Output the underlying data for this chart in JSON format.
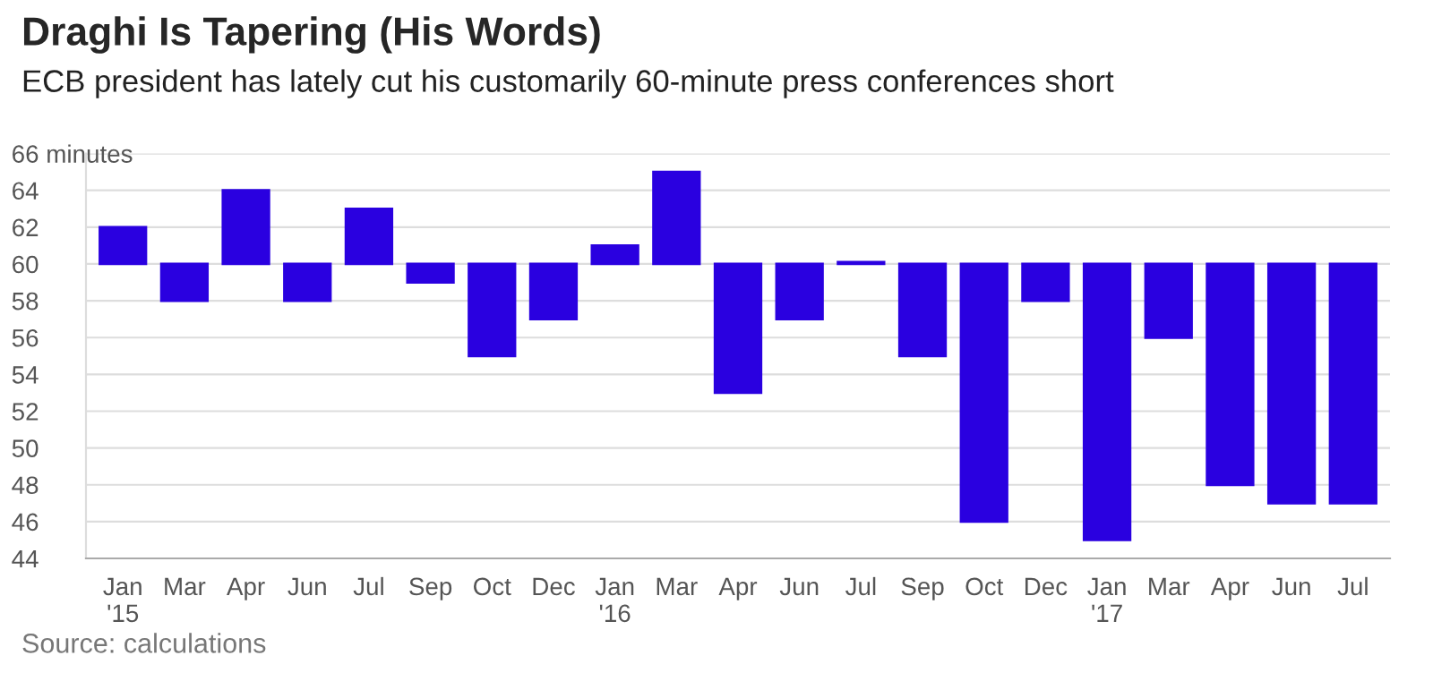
{
  "chart_data": {
    "type": "bar",
    "title": "Draghi Is Tapering (His Words)",
    "subtitle": "ECB president has lately cut his customarily 60-minute press conferences short",
    "categories": [
      "Jan\n'15",
      "Mar",
      "Apr",
      "Jun",
      "Jul",
      "Sep",
      "Oct",
      "Dec",
      "Jan\n'16",
      "Mar",
      "Apr",
      "Jun",
      "Jul",
      "Sep",
      "Oct",
      "Dec",
      "Jan\n'17",
      "Mar",
      "Apr",
      "Jun",
      "Jul"
    ],
    "values": [
      2,
      -2,
      4,
      -2,
      3,
      -1,
      -5,
      -3,
      1,
      5,
      -7,
      -3,
      0.1,
      -5,
      -14,
      -2,
      -15,
      -4,
      -12,
      -13,
      -13
    ],
    "base": [
      60,
      60,
      60,
      60,
      60,
      60,
      60,
      60,
      60,
      60,
      60,
      60,
      60,
      60,
      60,
      60,
      60,
      60,
      60,
      60,
      60
    ],
    "color": "#2a00e0",
    "ylim": [
      44,
      66
    ],
    "yticks": [
      44,
      46,
      48,
      50,
      52,
      54,
      56,
      58,
      60,
      62,
      64,
      {
        "value": 66,
        "label": "66 minutes"
      }
    ],
    "grid": "y",
    "annotations": [
      "Source: calculations"
    ]
  }
}
